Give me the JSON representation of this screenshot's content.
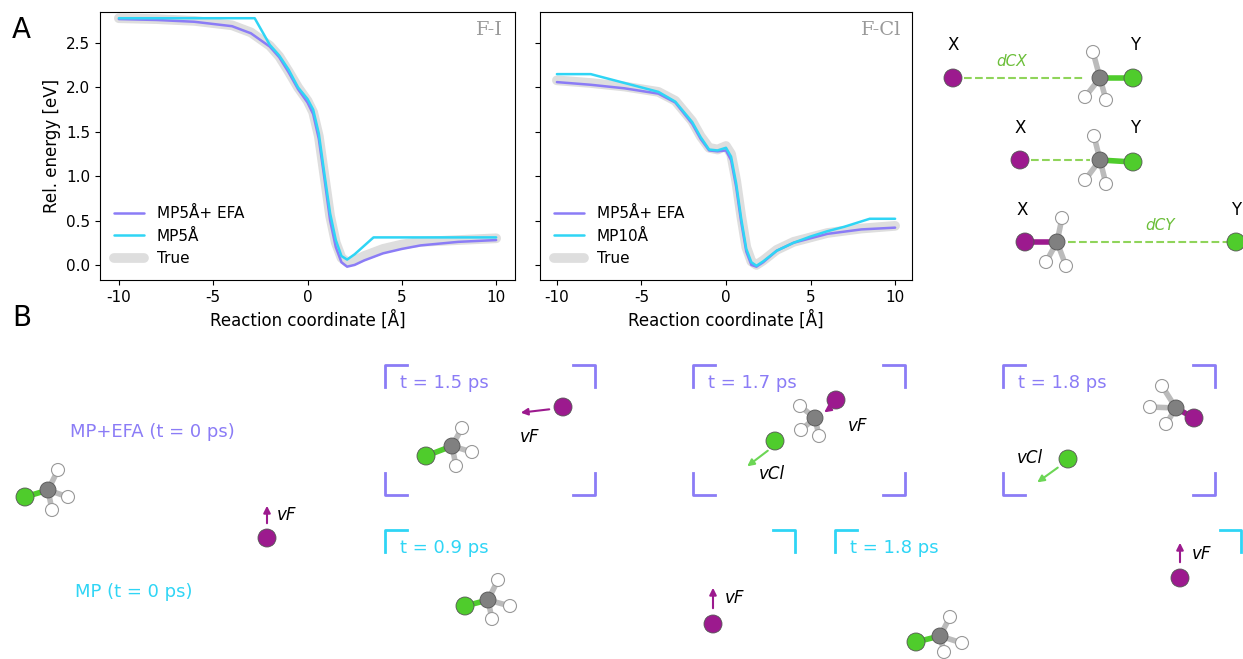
{
  "panel_labels": [
    "A",
    "B"
  ],
  "chart_data": [
    {
      "type": "line",
      "title": "F-I",
      "xlabel": "Reaction coordinate [Å]",
      "ylabel": "Rel. energy [eV]",
      "xlim": [
        -11,
        11
      ],
      "xticks": [
        -10,
        -5,
        0,
        5,
        10
      ],
      "ylim": [
        -0.17,
        2.85
      ],
      "yticks": [
        {
          "value": 0,
          "label": "0.0"
        },
        {
          "value": 0.5,
          "label": "0.5"
        },
        {
          "value": 1,
          "label": "1.0"
        },
        {
          "value": 1.5,
          "label": "1.5"
        },
        {
          "value": 2,
          "label": "2.0"
        },
        {
          "value": 2.5,
          "label": "2.5"
        }
      ],
      "legend": "lower left",
      "series": [
        {
          "name": "MP5Å+ EFA",
          "color": "#8b7cf6",
          "x": [
            -10,
            -8,
            -6,
            -4,
            -3,
            -2,
            -1.5,
            -1,
            -0.5,
            0,
            0.3,
            0.6,
            0.9,
            1.2,
            1.5,
            1.8,
            2.1,
            2.5,
            3,
            4,
            5,
            6,
            8,
            10
          ],
          "values": [
            2.77,
            2.76,
            2.74,
            2.69,
            2.61,
            2.46,
            2.34,
            2.17,
            1.98,
            1.83,
            1.7,
            1.42,
            0.97,
            0.5,
            0.2,
            0.03,
            -0.02,
            0.0,
            0.05,
            0.13,
            0.18,
            0.22,
            0.26,
            0.28
          ]
        },
        {
          "name": "MP5Å",
          "color": "#2fd5f5",
          "x": [
            -10,
            -3,
            -2.8,
            -2,
            -1.5,
            -1,
            -0.5,
            0,
            0.3,
            0.6,
            0.9,
            1.2,
            1.5,
            1.8,
            2.1,
            2.5,
            3.5,
            10
          ],
          "values": [
            2.78,
            2.78,
            2.78,
            2.48,
            2.36,
            2.2,
            2.0,
            1.87,
            1.75,
            1.48,
            1.02,
            0.58,
            0.28,
            0.1,
            0.06,
            0.12,
            0.31,
            0.31
          ]
        },
        {
          "name": "True",
          "color": "#dedede",
          "x": [
            -10,
            -8,
            -6,
            -4,
            -3,
            -2,
            -1.5,
            -1,
            -0.5,
            0,
            0.3,
            0.6,
            0.9,
            1.2,
            1.5,
            1.8,
            2.1,
            2.5,
            3,
            4,
            5,
            6,
            8,
            10
          ],
          "values": [
            2.78,
            2.77,
            2.75,
            2.7,
            2.62,
            2.47,
            2.35,
            2.18,
            2.0,
            1.85,
            1.72,
            1.45,
            1.0,
            0.55,
            0.25,
            0.08,
            0.03,
            0.05,
            0.1,
            0.18,
            0.23,
            0.26,
            0.28,
            0.3
          ]
        }
      ]
    },
    {
      "type": "line",
      "title": "F-Cl",
      "xlabel": "Reaction coordinate [Å]",
      "xlim": [
        -11,
        11
      ],
      "xticks": [
        -10,
        -5,
        0,
        5,
        10
      ],
      "ylim": [
        -0.17,
        2.85
      ],
      "yticks": [
        {
          "value": 0,
          "label": "0.0"
        },
        {
          "value": 0.5,
          "label": "0.5"
        },
        {
          "value": 1,
          "label": "1.0"
        },
        {
          "value": 1.5,
          "label": "1.5"
        },
        {
          "value": 2,
          "label": "2.0"
        },
        {
          "value": 2.5,
          "label": "2.5"
        }
      ],
      "tick_labels": "x",
      "legend": "lower left",
      "series": [
        {
          "name": "MP5Å+ EFA",
          "color": "#8b7cf6",
          "x": [
            -10,
            -8,
            -6,
            -4,
            -3,
            -2,
            -1.5,
            -1,
            -0.5,
            0,
            0.3,
            0.6,
            0.9,
            1.2,
            1.5,
            1.8,
            2.2,
            3,
            4,
            5,
            6,
            8,
            10
          ],
          "values": [
            2.06,
            2.03,
            1.99,
            1.93,
            1.83,
            1.59,
            1.42,
            1.29,
            1.28,
            1.29,
            1.18,
            0.88,
            0.48,
            0.15,
            0.0,
            -0.02,
            0.03,
            0.16,
            0.25,
            0.3,
            0.35,
            0.4,
            0.42
          ]
        },
        {
          "name": "MP10Å",
          "color": "#2fd5f5",
          "x": [
            -10,
            -8,
            -6,
            -4,
            -3,
            -2,
            -1.5,
            -1,
            -0.5,
            0,
            0.3,
            0.6,
            0.9,
            1.2,
            1.5,
            1.8,
            2.2,
            3,
            4,
            5,
            6,
            7,
            8.5,
            10
          ],
          "values": [
            2.15,
            2.15,
            2.05,
            1.95,
            1.84,
            1.61,
            1.44,
            1.3,
            1.29,
            1.32,
            1.22,
            0.92,
            0.52,
            0.18,
            0.03,
            -0.01,
            0.04,
            0.16,
            0.25,
            0.32,
            0.38,
            0.43,
            0.52,
            0.52
          ]
        },
        {
          "name": "True",
          "color": "#dedede",
          "x": [
            -10,
            -8,
            -6,
            -4,
            -3,
            -2,
            -1.5,
            -1,
            -0.5,
            0,
            0.3,
            0.6,
            0.9,
            1.2,
            1.5,
            1.8,
            2.2,
            3,
            4,
            5,
            6,
            8,
            10
          ],
          "values": [
            2.08,
            2.05,
            2.01,
            1.95,
            1.85,
            1.62,
            1.45,
            1.32,
            1.3,
            1.34,
            1.25,
            0.95,
            0.55,
            0.2,
            0.04,
            0.0,
            0.05,
            0.17,
            0.26,
            0.31,
            0.36,
            0.41,
            0.44
          ]
        }
      ]
    }
  ],
  "schematic": {
    "x_label": "X",
    "y_label": "Y",
    "d_cx": "dCX",
    "d_cy": "dCY"
  },
  "snapshots": {
    "rows": [
      {
        "label": "MP+EFA (t = 0 ps)",
        "color": "#8b7cf6",
        "frames": [
          "t = 1.5 ps",
          "t = 1.7 ps",
          "t = 1.8 ps"
        ]
      },
      {
        "label": "MP (t = 0 ps)",
        "color": "#2fd5f5",
        "frames": [
          "t = 0.9 ps",
          "t = 1.8 ps"
        ]
      }
    ],
    "velocity_labels": {
      "F": "vF",
      "Cl": "vCl"
    }
  }
}
